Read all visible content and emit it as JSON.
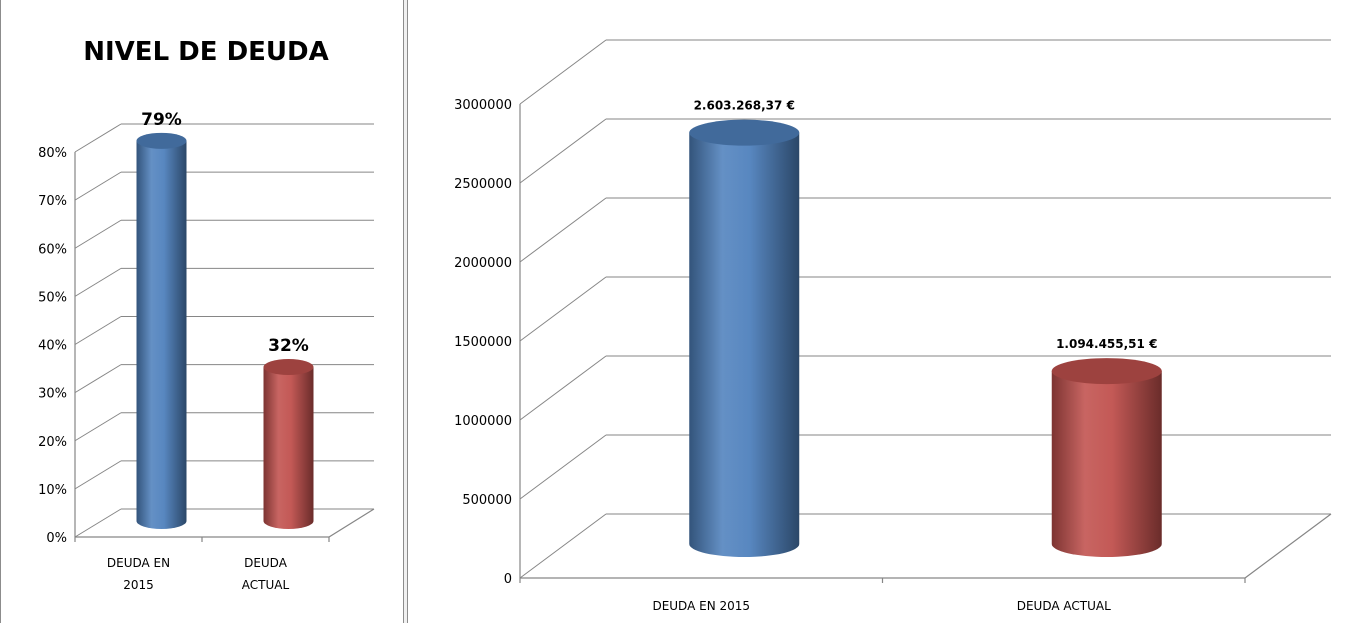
{
  "chart_data": [
    {
      "type": "bar",
      "title": "NIVEL DE DEUDA",
      "categories": [
        "DEUDA EN 2015",
        "DEUDA ACTUAL"
      ],
      "category_lines": [
        [
          "DEUDA EN",
          "2015"
        ],
        [
          "DEUDA",
          "ACTUAL"
        ]
      ],
      "values": [
        79,
        32
      ],
      "data_labels": [
        "79%",
        "32%"
      ],
      "colors": [
        "#4f81bd",
        "#c0504d"
      ],
      "ylim": [
        0,
        80
      ],
      "yticks": [
        0,
        10,
        20,
        30,
        40,
        50,
        60,
        70,
        80
      ],
      "ytick_labels": [
        "0%",
        "10%",
        "20%",
        "30%",
        "40%",
        "50%",
        "60%",
        "70%",
        "80%"
      ],
      "grid": true,
      "style": "3d-cylinder"
    },
    {
      "type": "bar",
      "categories": [
        "DEUDA EN 2015",
        "DEUDA ACTUAL"
      ],
      "values": [
        2603268.37,
        1094455.51
      ],
      "data_labels": [
        "2.603.268,37 €",
        "1.094.455,51 €"
      ],
      "colors": [
        "#4f81bd",
        "#c0504d"
      ],
      "ylim": [
        0,
        3000000
      ],
      "yticks": [
        0,
        500000,
        1000000,
        1500000,
        2000000,
        2500000,
        3000000
      ],
      "ytick_labels": [
        "0",
        "500000",
        "1000000",
        "1500000",
        "2000000",
        "2500000",
        "3000000"
      ],
      "grid": true,
      "style": "3d-cylinder"
    }
  ]
}
